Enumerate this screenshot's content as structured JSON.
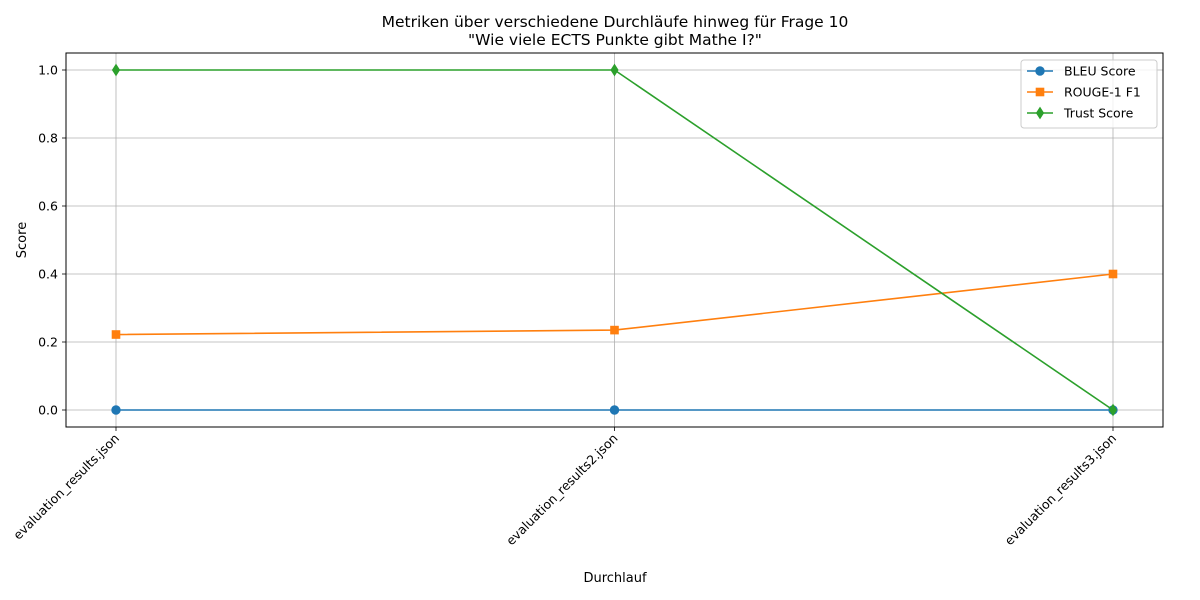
{
  "chart_data": {
    "type": "line",
    "title": "Metriken über verschiedene Durchläufe hinweg für Frage 10",
    "subtitle": "\"Wie viele ECTS Punkte gibt Mathe I?\"",
    "xlabel": "Durchlauf",
    "ylabel": "Score",
    "categories": [
      "evaluation_results.json",
      "evaluation_results2.json",
      "evaluation_results3.json"
    ],
    "ylim": [
      -0.05,
      1.05
    ],
    "yticks": [
      0.0,
      0.2,
      0.4,
      0.6,
      0.8,
      1.0
    ],
    "ytick_labels": [
      "0.0",
      "0.2",
      "0.4",
      "0.6",
      "0.8",
      "1.0"
    ],
    "grid": true,
    "legend_position": "top-right",
    "series": [
      {
        "name": "BLEU Score",
        "values": [
          0.0,
          0.0,
          0.0
        ],
        "color": "#1f77b4",
        "marker": "circle"
      },
      {
        "name": "ROUGE-1 F1",
        "values": [
          0.222,
          0.235,
          0.4
        ],
        "color": "#ff7f0e",
        "marker": "square"
      },
      {
        "name": "Trust Score",
        "values": [
          1.0,
          1.0,
          0.0
        ],
        "color": "#2ca02c",
        "marker": "thin-diamond"
      }
    ]
  }
}
